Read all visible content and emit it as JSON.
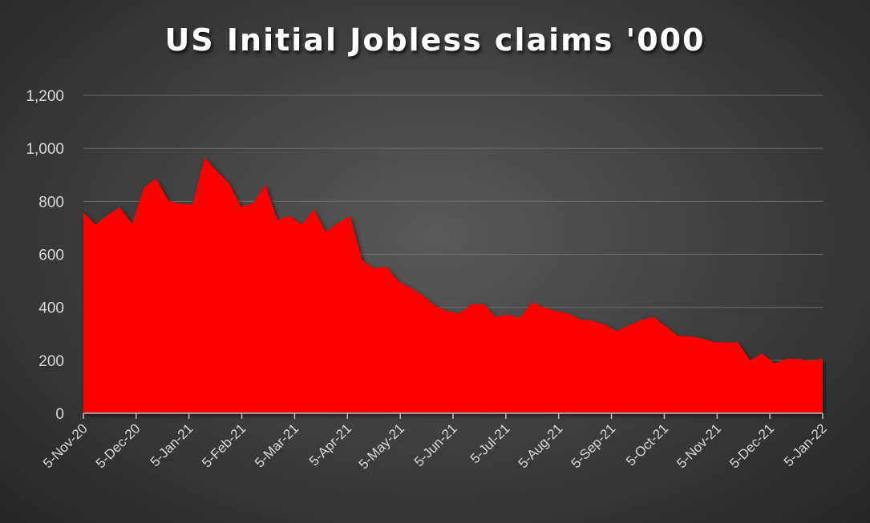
{
  "chart_data": {
    "type": "area",
    "title": "US Initial Jobless claims '000",
    "xlabel": "",
    "ylabel": "",
    "ylim": [
      0,
      1200
    ],
    "y_ticks": [
      0,
      200,
      400,
      600,
      800,
      1000,
      1200
    ],
    "y_tick_labels": [
      "0",
      "200",
      "400",
      "600",
      "800",
      "1,000",
      "1,200"
    ],
    "x_tick_labels": [
      "5-Nov-20",
      "5-Dec-20",
      "5-Jan-21",
      "5-Feb-21",
      "5-Mar-21",
      "5-Apr-21",
      "5-May-21",
      "5-Jun-21",
      "5-Jul-21",
      "5-Aug-21",
      "5-Sep-21",
      "5-Oct-21",
      "5-Nov-21",
      "5-Dec-21",
      "5-Jan-22"
    ],
    "grid": true,
    "series_color": "#ff0000",
    "series": [
      {
        "values": [
          757,
          712,
          748,
          778,
          716,
          853,
          885,
          803,
          790,
          787,
          965,
          914,
          868,
          779,
          793,
          863,
          730,
          745,
          712,
          770,
          684,
          719,
          744,
          576,
          547,
          553,
          498,
          473,
          444,
          406,
          385,
          376,
          411,
          412,
          364,
          373,
          360,
          419,
          399,
          385,
          377,
          353,
          349,
          335,
          310,
          332,
          351,
          364,
          329,
          293,
          290,
          283,
          269,
          267,
          268,
          199,
          226,
          188,
          205,
          206,
          198,
          207
        ]
      }
    ]
  }
}
